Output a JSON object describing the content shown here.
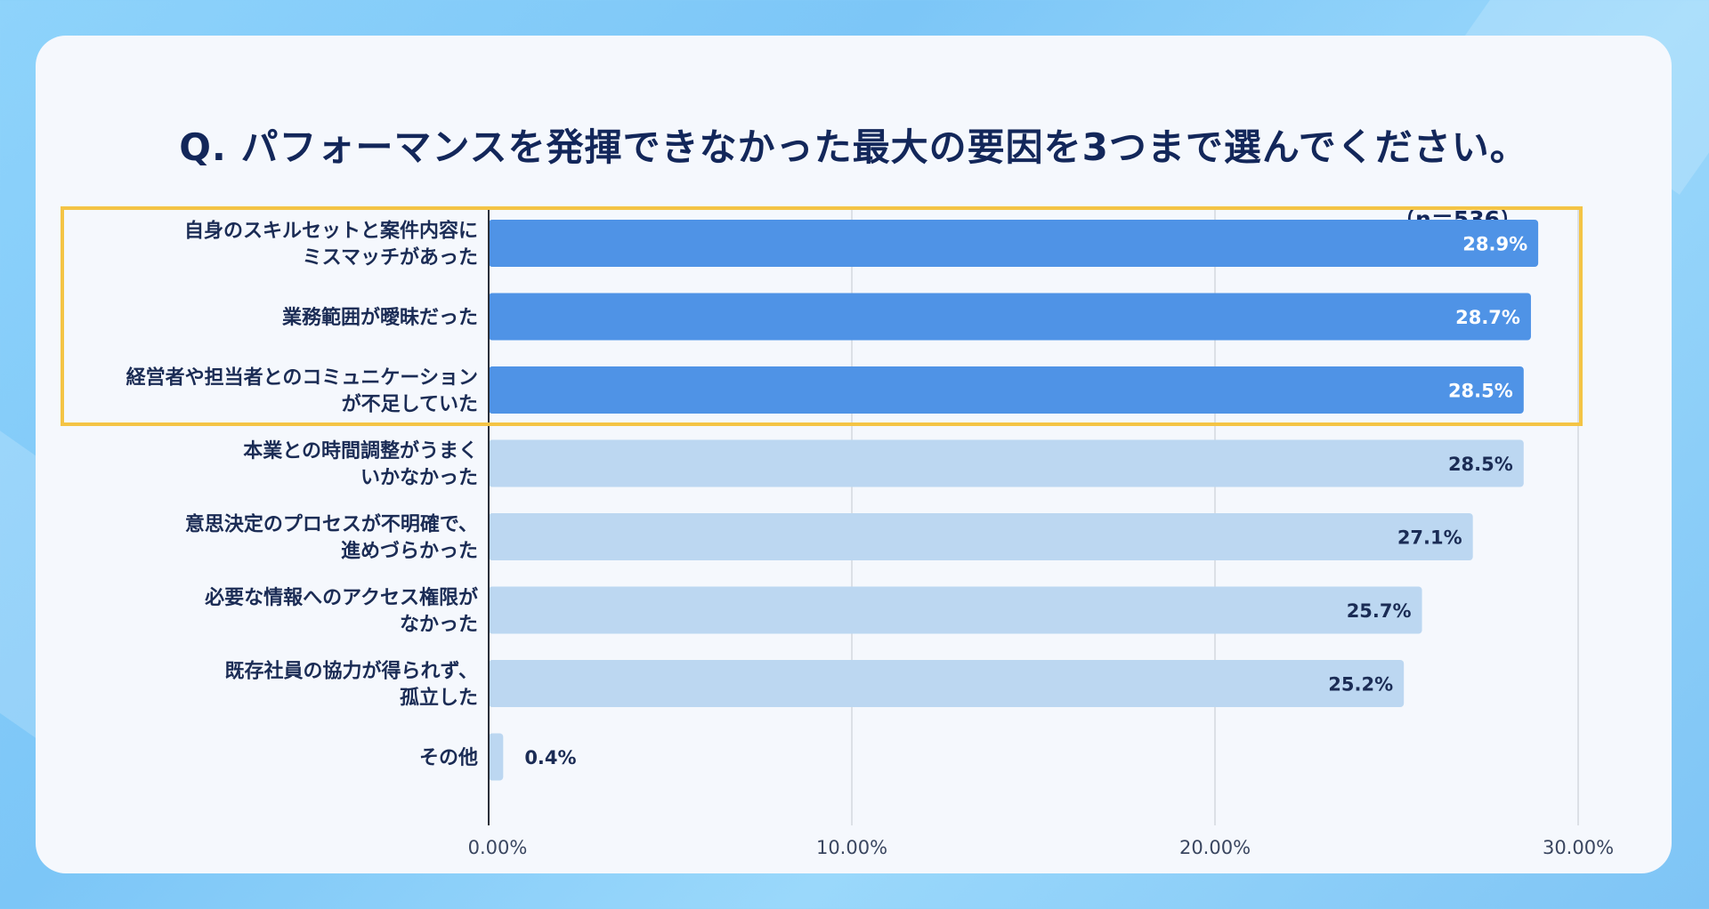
{
  "chart_data": {
    "type": "bar",
    "orientation": "horizontal",
    "title": "Q. パフォーマンスを発揮できなかった最大の要因を3つまで選んでください。",
    "sample_size": "（n＝536）",
    "categories": [
      [
        "自身のスキルセットと案件内容に",
        "ミスマッチがあった"
      ],
      [
        "業務範囲が曖昧だった"
      ],
      [
        "経営者や担当者とのコミュニケーション",
        "が不足していた"
      ],
      [
        "本業との時間調整がうまく",
        "いかなかった"
      ],
      [
        "意思決定のプロセスが不明確で、",
        "進めづらかった"
      ],
      [
        "必要な情報へのアクセス権限が",
        "なかった"
      ],
      [
        "既存社員の協力が得られず、",
        "孤立した"
      ],
      [
        "その他"
      ]
    ],
    "values": [
      28.9,
      28.7,
      28.5,
      28.5,
      27.1,
      25.7,
      25.2,
      0.4
    ],
    "value_labels": [
      "28.9%",
      "28.7%",
      "28.5%",
      "28.5%",
      "27.1%",
      "25.7%",
      "25.2%",
      "0.4%"
    ],
    "highlighted": [
      true,
      true,
      true,
      false,
      false,
      false,
      false,
      false
    ],
    "xlim": [
      0,
      30
    ],
    "xticks": [
      0,
      10,
      20,
      30
    ],
    "xtick_labels": [
      "0.00%",
      "10.00%",
      "20.00%",
      "30.00%"
    ],
    "grid": true,
    "colors": {
      "highlight_bar": "#4f93e6",
      "normal_bar": "#bcd7f1",
      "highlight_box": "#f4c445",
      "title_text": "#13275a"
    }
  }
}
